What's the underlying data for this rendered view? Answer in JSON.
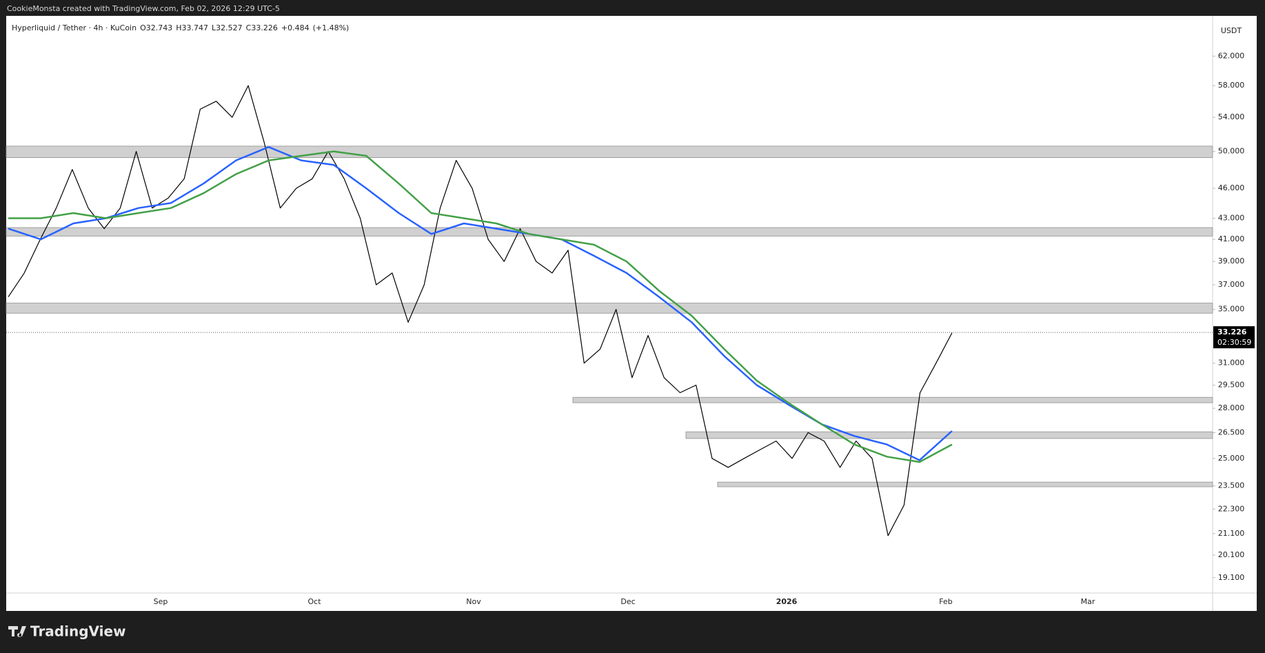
{
  "header": {
    "text": "CookieMonsta created with TradingView.com, Feb 02, 2026 12:29 UTC-5"
  },
  "chart_data": {
    "type": "line",
    "legend": {
      "symbol": "Hyperliquid / Tether · 4h · KuCoin",
      "open_label": "O",
      "open": 32.743,
      "high_label": "H",
      "high": 33.747,
      "low_label": "L",
      "low": 32.527,
      "close_label": "C",
      "close": 33.226,
      "change": "+0.484",
      "change_pct": "(+1.48%)"
    },
    "currency": "USDT",
    "x_labels": [
      "Sep",
      "Oct",
      "Nov",
      "Dec",
      "2026",
      "Feb",
      "Mar"
    ],
    "log_scale": true,
    "ylim": [
      18.45,
      67.9
    ],
    "yticks": [
      {
        "value": 62,
        "label": "62.000"
      },
      {
        "value": 58,
        "label": "58.000"
      },
      {
        "value": 54,
        "label": "54.000"
      },
      {
        "value": 50,
        "label": "50.000"
      },
      {
        "value": 46,
        "label": "46.000"
      },
      {
        "value": 43,
        "label": "43.000"
      },
      {
        "value": 41,
        "label": "41.000"
      },
      {
        "value": 39,
        "label": "39.000"
      },
      {
        "value": 37,
        "label": "37.000"
      },
      {
        "value": 35,
        "label": "35.000"
      },
      {
        "value": 31,
        "label": "31.000"
      },
      {
        "value": 29.5,
        "label": "29.500"
      },
      {
        "value": 28,
        "label": "28.000"
      },
      {
        "value": 26.5,
        "label": "26.500"
      },
      {
        "value": 25,
        "label": "25.000"
      },
      {
        "value": 23.5,
        "label": "23.500"
      },
      {
        "value": 22.3,
        "label": "22.300"
      },
      {
        "value": 21.1,
        "label": "21.100"
      },
      {
        "value": 20.1,
        "label": "20.100"
      },
      {
        "value": 19.1,
        "label": "19.100"
      }
    ],
    "series": [
      {
        "name": "Price",
        "color": "#000000",
        "values": [
          36,
          38,
          41,
          44,
          48,
          44,
          42,
          44,
          50,
          44,
          45,
          47,
          55,
          56,
          54,
          58,
          51,
          44,
          46,
          47,
          50,
          47,
          43,
          37,
          38,
          34,
          37,
          44,
          49,
          46,
          41,
          39,
          42,
          39,
          38,
          40,
          31,
          32,
          35,
          30,
          33,
          30,
          29,
          29.5,
          25,
          24.5,
          25,
          25.5,
          26,
          25,
          26.5,
          26,
          24.5,
          26,
          25,
          21,
          22.5,
          29,
          31,
          33.2
        ]
      },
      {
        "name": "MA fast",
        "color": "#2962ff",
        "values": [
          42,
          41,
          42.5,
          43,
          44,
          44.5,
          46.5,
          49,
          50.5,
          49,
          48.5,
          46,
          43.5,
          41.5,
          42.5,
          42,
          41.5,
          41,
          39.5,
          38,
          36,
          34,
          31.5,
          29.5,
          28.2,
          27,
          26.3,
          25.8,
          24.9,
          26.6
        ]
      },
      {
        "name": "MA slow",
        "color": "#43a047",
        "values": [
          43,
          43,
          43.5,
          43,
          43.5,
          44,
          45.5,
          47.5,
          49,
          49.5,
          50,
          49.5,
          46.5,
          43.5,
          43,
          42.5,
          41.5,
          41,
          40.5,
          39,
          36.5,
          34.5,
          32,
          29.8,
          28.3,
          27,
          25.8,
          25.1,
          24.8,
          25.8
        ]
      }
    ],
    "zones": [
      {
        "low": 49.3,
        "high": 50.6
      },
      {
        "low": 41.3,
        "high": 42.1
      },
      {
        "low": 34.7,
        "high": 35.5
      },
      {
        "low": 28.35,
        "high": 28.7
      },
      {
        "low": 26.15,
        "high": 26.55
      },
      {
        "low": 23.45,
        "high": 23.7
      }
    ],
    "price_tag": {
      "value": 33.226,
      "countdown": "02:30:59"
    }
  },
  "footer": {
    "brand": "TradingView"
  }
}
